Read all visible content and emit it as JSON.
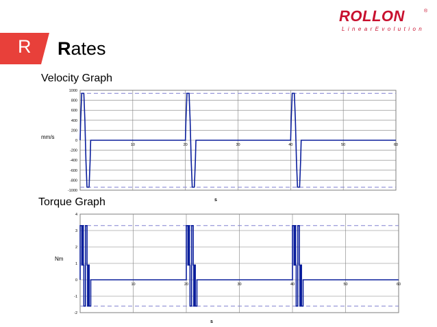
{
  "slide": {
    "badge_letter": "R",
    "heading_first": "R",
    "heading_rest": "ates"
  },
  "logo": {
    "brand": "ROLLON",
    "registered": "®",
    "tagline": "LinearEvolution",
    "colors": {
      "brand": "#c8102e"
    }
  },
  "colors": {
    "badge": "#e8403a",
    "trace": "#0a1e9c",
    "limit": "#8080d0",
    "grid": "#7f7f7f"
  },
  "chart_data": [
    {
      "id": "velocity",
      "type": "line",
      "title": "Velocity Graph",
      "xlabel": "s",
      "ylabel": "mm/s",
      "xlim": [
        0,
        60
      ],
      "ylim": [
        -1000,
        1000
      ],
      "yticks": [
        1000,
        800,
        600,
        400,
        200,
        0,
        -200,
        -400,
        -600,
        -800,
        -1000
      ],
      "xticks": [
        10,
        20,
        30,
        40,
        50,
        60
      ],
      "grid": true,
      "limit_lines": [
        940,
        -940
      ],
      "series": [
        {
          "x": [
            0,
            0.1,
            0.3,
            0.7,
            0.9,
            1.0,
            1.1,
            1.3,
            1.7,
            1.9,
            2.0,
            20,
            20.1,
            20.3,
            20.7,
            20.9,
            21.0,
            21.1,
            21.3,
            21.7,
            21.9,
            22.0,
            40,
            40.1,
            40.3,
            40.7,
            40.9,
            41.0,
            41.1,
            41.3,
            41.7,
            41.9,
            42.0,
            60
          ],
          "y": [
            0,
            400,
            940,
            940,
            400,
            0,
            -400,
            -940,
            -940,
            -400,
            0,
            0,
            400,
            940,
            940,
            400,
            0,
            -400,
            -940,
            -940,
            -400,
            0,
            0,
            400,
            940,
            940,
            400,
            0,
            -400,
            -940,
            -940,
            -400,
            0,
            0
          ]
        }
      ]
    },
    {
      "id": "torque",
      "type": "line",
      "title": "Torque Graph",
      "xlabel": "s",
      "ylabel": "Nm",
      "xlim": [
        0,
        60
      ],
      "ylim": [
        -2,
        4
      ],
      "yticks": [
        4,
        3,
        2,
        1,
        0,
        -1,
        -2
      ],
      "xticks": [
        10,
        20,
        30,
        40,
        50,
        60
      ],
      "grid": true,
      "limit_lines": [
        3.3,
        -1.6
      ],
      "series": [
        {
          "x": [
            0,
            0,
            0.3,
            0.3,
            0.4,
            0.4,
            0.6,
            0.6,
            0.7,
            0.7,
            1.0,
            1.0,
            1.3,
            1.3,
            1.4,
            1.4,
            1.6,
            1.6,
            1.7,
            1.7,
            2.0,
            2.0,
            20,
            20,
            20.3,
            20.3,
            20.4,
            20.4,
            20.6,
            20.6,
            20.7,
            20.7,
            21.0,
            21.0,
            21.3,
            21.3,
            21.4,
            21.4,
            21.6,
            21.6,
            21.7,
            21.7,
            22.0,
            22.0,
            40,
            40,
            40.3,
            40.3,
            40.4,
            40.4,
            40.6,
            40.6,
            40.7,
            40.7,
            41.0,
            41.0,
            41.3,
            41.3,
            41.4,
            41.4,
            41.6,
            41.6,
            41.7,
            41.7,
            42.0,
            42.0,
            60
          ],
          "y": [
            0,
            3.3,
            3.3,
            0.9,
            0.9,
            3.3,
            3.3,
            0.9,
            0.9,
            -1.6,
            -1.6,
            3.3,
            3.3,
            0.9,
            0.9,
            -1.6,
            -1.6,
            0.9,
            0.9,
            -1.6,
            -1.6,
            0,
            0,
            3.3,
            3.3,
            0.9,
            0.9,
            3.3,
            3.3,
            0.9,
            0.9,
            -1.6,
            -1.6,
            3.3,
            3.3,
            0.9,
            0.9,
            -1.6,
            -1.6,
            0.9,
            0.9,
            -1.6,
            -1.6,
            0,
            0,
            3.3,
            3.3,
            0.9,
            0.9,
            3.3,
            3.3,
            0.9,
            0.9,
            -1.6,
            -1.6,
            3.3,
            3.3,
            0.9,
            0.9,
            -1.6,
            -1.6,
            0.9,
            0.9,
            -1.6,
            -1.6,
            0,
            0
          ]
        }
      ]
    }
  ]
}
